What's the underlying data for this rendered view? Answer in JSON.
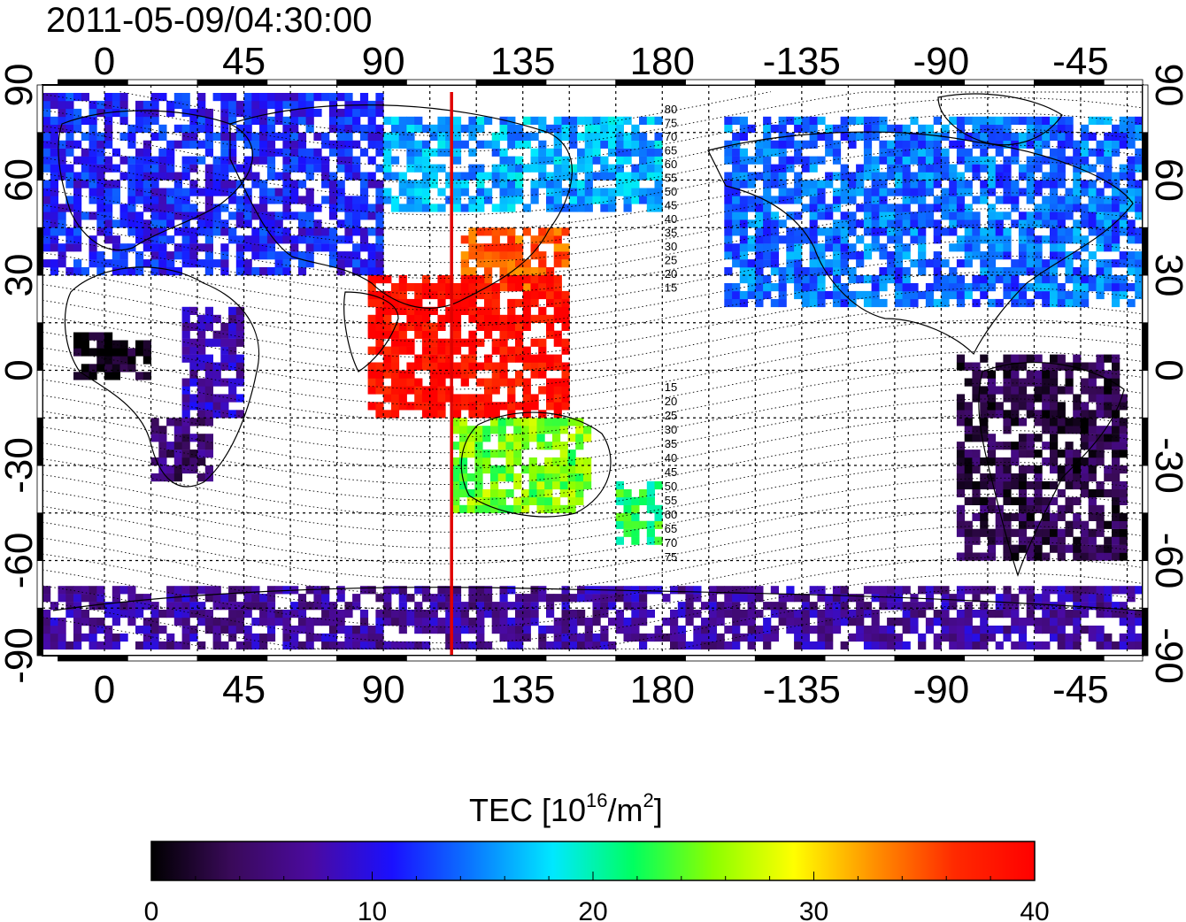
{
  "title": "2011-05-09/04:30:00",
  "colorbar": {
    "title_main": "TEC  [10",
    "title_sup": "16",
    "title_mid": "/m",
    "title_sup2": "2",
    "title_end": "]",
    "min": 0,
    "max": 40,
    "tick_labels": [
      "0",
      "10",
      "20",
      "30",
      "40"
    ],
    "colors": [
      "#000000",
      "#3a0a5a",
      "#4b0aa0",
      "#1a10ff",
      "#0a78ff",
      "#00e8ff",
      "#00ff60",
      "#8cff00",
      "#ffff00",
      "#ff9000",
      "#ff2a00",
      "#ff0000"
    ]
  },
  "chart_data": {
    "type": "heatmap",
    "xlabel": "",
    "ylabel": "",
    "x_ticks": [
      "0",
      "45",
      "90",
      "135",
      "180",
      "-135",
      "-90",
      "-45"
    ],
    "y_ticks": [
      "90",
      "60",
      "30",
      "0",
      "-30",
      "-60",
      "-90"
    ],
    "lon_range": [
      -20,
      335
    ],
    "lat_range": [
      -90,
      90
    ],
    "grid": true,
    "marker_line": {
      "lon": 112,
      "color": "#e00000"
    },
    "magnetic_labels_north": [
      "80",
      "75",
      "70",
      "65",
      "60",
      "55",
      "50",
      "45",
      "40",
      "35",
      "30",
      "25",
      "20",
      "15"
    ],
    "magnetic_labels_south": [
      "15",
      "20",
      "25",
      "30",
      "35",
      "40",
      "45",
      "50",
      "55",
      "60",
      "65",
      "70",
      "75"
    ],
    "tec_regions": [
      {
        "name": "europe-asia-north",
        "lon": [
          -20,
          90
        ],
        "lat": [
          30,
          87
        ],
        "tec": 11
      },
      {
        "name": "siberia-sparse",
        "lon": [
          90,
          180
        ],
        "lat": [
          50,
          80
        ],
        "tec": 16
      },
      {
        "name": "north-america",
        "lon": [
          200,
          335
        ],
        "lat": [
          20,
          80
        ],
        "tec": 14
      },
      {
        "name": "east-asia",
        "lon": [
          115,
          150
        ],
        "lat": [
          25,
          45
        ],
        "tec": 35
      },
      {
        "name": "south-east-asia",
        "lon": [
          85,
          150
        ],
        "lat": [
          -15,
          30
        ],
        "tec": 39
      },
      {
        "name": "africa-west",
        "lon": [
          -10,
          15
        ],
        "lat": [
          -3,
          12
        ],
        "tec": 1
      },
      {
        "name": "africa-east",
        "lon": [
          25,
          45
        ],
        "lat": [
          -15,
          20
        ],
        "tec": 8
      },
      {
        "name": "southern-africa",
        "lon": [
          15,
          35
        ],
        "lat": [
          -35,
          -15
        ],
        "tec": 5
      },
      {
        "name": "australia",
        "lon": [
          112,
          155
        ],
        "lat": [
          -45,
          -15
        ],
        "tec": 25
      },
      {
        "name": "new-zealand",
        "lon": [
          165,
          180
        ],
        "lat": [
          -55,
          -35
        ],
        "tec": 22
      },
      {
        "name": "south-america",
        "lon": [
          275,
          330
        ],
        "lat": [
          -60,
          5
        ],
        "tec": 3
      },
      {
        "name": "antarctica",
        "lon": [
          -20,
          335
        ],
        "lat": [
          -88,
          -70
        ],
        "tec": 7
      }
    ]
  }
}
